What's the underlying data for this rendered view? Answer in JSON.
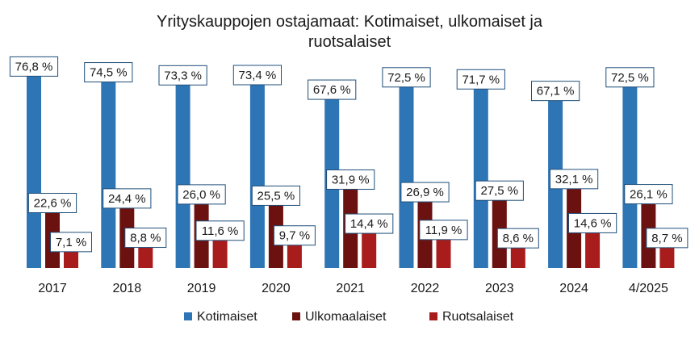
{
  "chart_data": {
    "type": "bar",
    "title_lines": [
      "Yrityskauppojen ostajamaat: Kotimaiset, ulkomaiset ja",
      "ruotsalaiset"
    ],
    "categories": [
      "2017",
      "2018",
      "2019",
      "2020",
      "2021",
      "2022",
      "2023",
      "2024",
      "4/2025"
    ],
    "series": [
      {
        "name": "Kotimaiset",
        "color": "#2e75b6",
        "values": [
          76.8,
          74.5,
          73.3,
          73.4,
          67.6,
          72.5,
          71.7,
          67.1,
          72.5
        ],
        "labels": [
          "76,8 %",
          "74,5 %",
          "73,3 %",
          "73,4 %",
          "67,6 %",
          "72,5 %",
          "71,7 %",
          "67,1 %",
          "72,5 %"
        ]
      },
      {
        "name": "Ulkomaalaiset",
        "color": "#6b1210",
        "values": [
          22.6,
          24.4,
          26.0,
          25.5,
          31.9,
          26.9,
          27.5,
          32.1,
          26.1
        ],
        "labels": [
          "22,6 %",
          "24,4 %",
          "26,0 %",
          "25,5 %",
          "31,9 %",
          "26,9 %",
          "27,5 %",
          "32,1 %",
          "26,1 %"
        ]
      },
      {
        "name": "Ruotsalaiset",
        "color": "#a81c1c",
        "values": [
          7.1,
          8.8,
          11.6,
          9.7,
          14.4,
          11.9,
          8.6,
          14.6,
          8.7
        ],
        "labels": [
          "7,1 %",
          "8,8 %",
          "11,6 %",
          "9,7 %",
          "14,4 %",
          "11,9 %",
          "8,6 %",
          "14,6 %",
          "8,7 %"
        ]
      }
    ],
    "ylim": [
      0,
      100
    ],
    "grid": false,
    "legend_position": "bottom",
    "label_border_color": "#1f4e79"
  }
}
